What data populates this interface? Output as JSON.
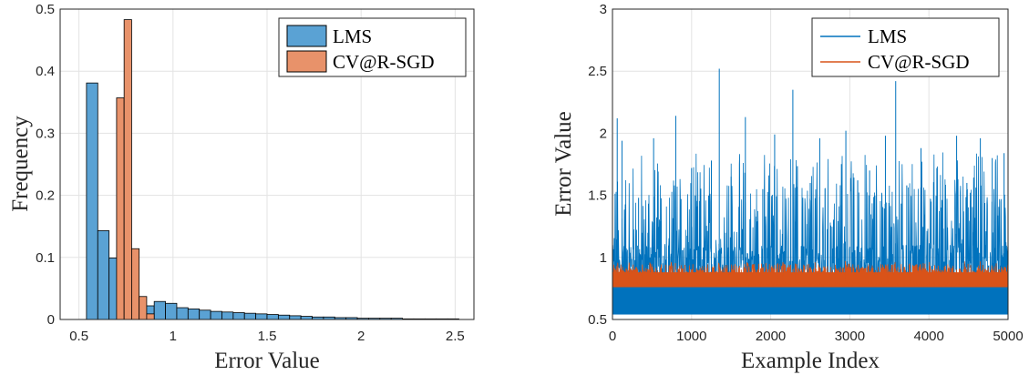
{
  "chart_data": [
    {
      "type": "bar",
      "subtype": "histogram",
      "xlabel": "Error Value",
      "ylabel": "Frequency",
      "xlim": [
        0.4,
        2.6
      ],
      "ylim": [
        0,
        0.5
      ],
      "xticks": [
        "0.5",
        "1",
        "1.5",
        "2",
        "2.5"
      ],
      "yticks": [
        "0",
        "0.1",
        "0.2",
        "0.3",
        "0.4",
        "0.5"
      ],
      "grid": true,
      "legend_position": "top-right",
      "series": [
        {
          "name": "LMS",
          "color": "#5aa2d4",
          "bin_width": 0.06,
          "bin_start": 0.54,
          "values": [
            0.381,
            0.143,
            0.099,
            0.056,
            0.031,
            0.022,
            0.029,
            0.026,
            0.019,
            0.017,
            0.015,
            0.013,
            0.012,
            0.011,
            0.01,
            0.009,
            0.008,
            0.007,
            0.006,
            0.005,
            0.004,
            0.004,
            0.003,
            0.003,
            0.002,
            0.002,
            0.002,
            0.002,
            0.001,
            0.001,
            0.001,
            0.001,
            0.001
          ]
        },
        {
          "name": "CV@R-SGD",
          "color": "#e8926a",
          "bin_width": 0.04,
          "bin_start": 0.7,
          "values": [
            0.357,
            0.483,
            0.114,
            0.037,
            0.009
          ]
        }
      ]
    },
    {
      "type": "line",
      "xlabel": "Example Index",
      "ylabel": "Error Value",
      "xlim": [
        0,
        5000
      ],
      "ylim": [
        0.5,
        3
      ],
      "xticks": [
        "0",
        "1000",
        "2000",
        "3000",
        "4000",
        "5000"
      ],
      "yticks": [
        "0.5",
        "1",
        "1.5",
        "2",
        "2.5",
        "3"
      ],
      "grid": true,
      "legend_position": "top-right",
      "series": [
        {
          "name": "LMS",
          "color": "#0072bd",
          "baseline_band": [
            0.54,
            0.9
          ],
          "spikes": [
            [
              60,
              2.12
            ],
            [
              120,
              1.94
            ],
            [
              330,
              1.48
            ],
            [
              520,
              1.96
            ],
            [
              800,
              2.14
            ],
            [
              1000,
              1.72
            ],
            [
              1250,
              1.78
            ],
            [
              1350,
              2.52
            ],
            [
              1500,
              1.65
            ],
            [
              1680,
              2.13
            ],
            [
              1900,
              1.55
            ],
            [
              2050,
              1.99
            ],
            [
              2280,
              2.35
            ],
            [
              2500,
              1.6
            ],
            [
              2620,
              1.96
            ],
            [
              2880,
              1.42
            ],
            [
              2950,
              2.02
            ],
            [
              3100,
              1.62
            ],
            [
              3250,
              1.7
            ],
            [
              3450,
              1.98
            ],
            [
              3580,
              2.42
            ],
            [
              3720,
              1.58
            ],
            [
              3900,
              1.88
            ],
            [
              4100,
              1.72
            ],
            [
              4350,
              1.98
            ],
            [
              4480,
              1.6
            ],
            [
              4650,
              1.96
            ],
            [
              4800,
              1.8
            ],
            [
              4950,
              1.84
            ]
          ]
        },
        {
          "name": "CV@R-SGD",
          "color": "#d95319",
          "baseline_band": [
            0.76,
            0.88
          ],
          "peak": 0.97
        }
      ]
    }
  ]
}
